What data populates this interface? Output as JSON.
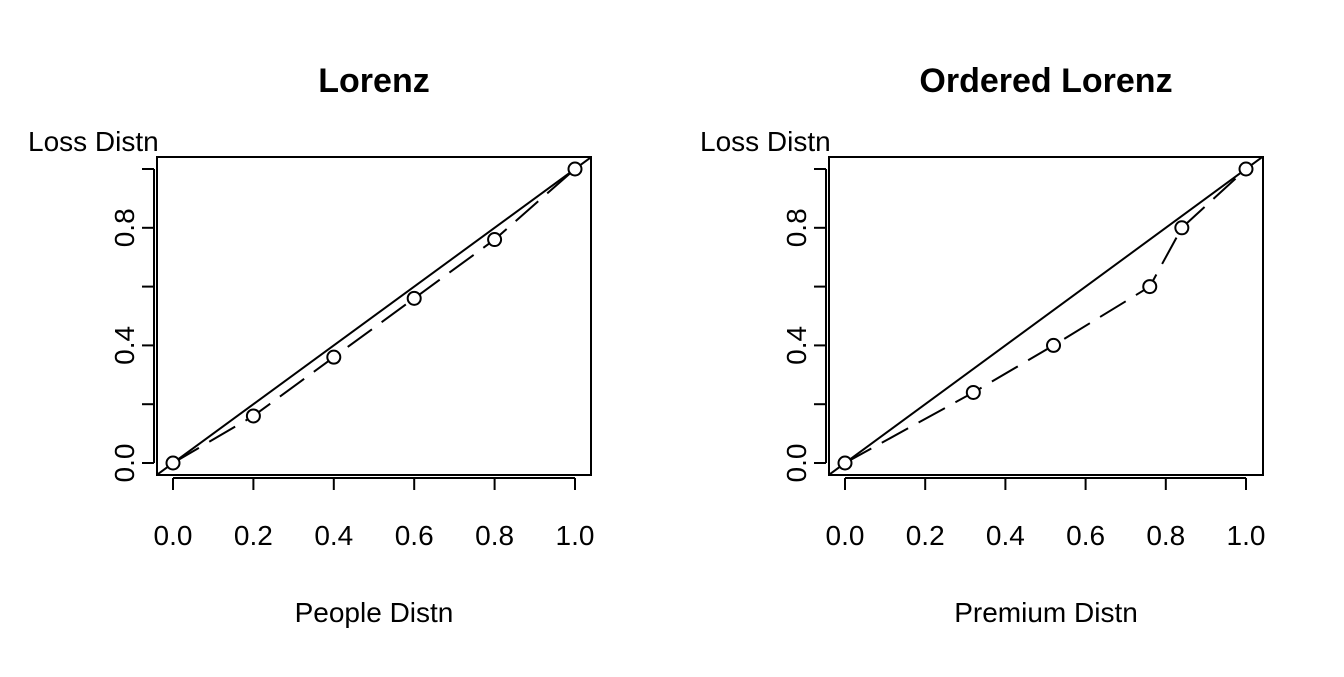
{
  "chart_data": [
    {
      "type": "line",
      "title": "Lorenz",
      "xlabel": "People Distn",
      "ylabel": "Loss Distn",
      "xlim": [
        0,
        1
      ],
      "ylim": [
        0,
        1
      ],
      "x_ticks": [
        "0.0",
        "0.2",
        "0.4",
        "0.6",
        "0.8",
        "1.0"
      ],
      "y_ticks": [
        "0.0",
        "0.4",
        "0.8"
      ],
      "y_tick_marks": [
        0,
        0.2,
        0.4,
        0.6,
        0.8,
        1.0
      ],
      "reference_line": [
        [
          0,
          0
        ],
        [
          1,
          1
        ]
      ],
      "series": [
        {
          "style": "dashed-with-open-circles",
          "points": [
            [
              0,
              0
            ],
            [
              0.2,
              0.16
            ],
            [
              0.4,
              0.36
            ],
            [
              0.6,
              0.56
            ],
            [
              0.8,
              0.76
            ],
            [
              1.0,
              1.0
            ]
          ]
        }
      ]
    },
    {
      "type": "line",
      "title": "Ordered Lorenz",
      "xlabel": "Premium Distn",
      "ylabel": "Loss Distn",
      "xlim": [
        0,
        1
      ],
      "ylim": [
        0,
        1
      ],
      "x_ticks": [
        "0.0",
        "0.2",
        "0.4",
        "0.6",
        "0.8",
        "1.0"
      ],
      "y_ticks": [
        "0.0",
        "0.4",
        "0.8"
      ],
      "y_tick_marks": [
        0,
        0.2,
        0.4,
        0.6,
        0.8,
        1.0
      ],
      "reference_line": [
        [
          0,
          0
        ],
        [
          1,
          1
        ]
      ],
      "series": [
        {
          "style": "dashed-with-open-circles",
          "points": [
            [
              0,
              0
            ],
            [
              0.32,
              0.24
            ],
            [
              0.52,
              0.4
            ],
            [
              0.76,
              0.6
            ],
            [
              0.84,
              0.8
            ],
            [
              1.0,
              1.0
            ]
          ]
        }
      ]
    }
  ]
}
